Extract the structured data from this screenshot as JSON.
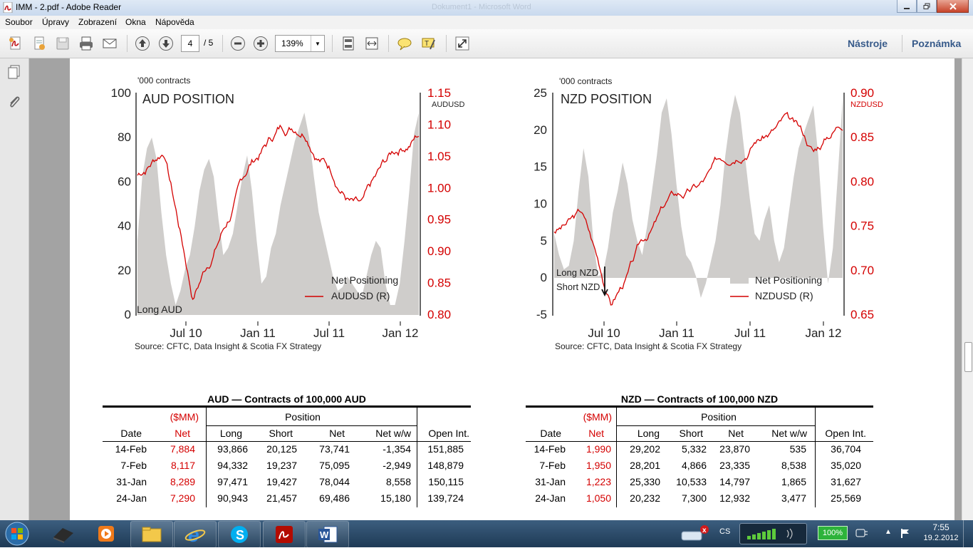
{
  "window": {
    "title": "IMM - 2.pdf - Adobe Reader",
    "background_title": "Dokument1 - Microsoft Word"
  },
  "menu": {
    "items": [
      "Soubor",
      "Úpravy",
      "Zobrazení",
      "Okna",
      "Nápověda"
    ]
  },
  "toolbar": {
    "page_current": "4",
    "page_total": "/ 5",
    "zoom": "139%",
    "tools_label": "Nástroje",
    "comment_label": "Poznámka"
  },
  "charts": {
    "aud": {
      "title": "AUD POSITION",
      "units": "'000 contracts",
      "right_label": "AUDUSD",
      "y_left_ticks": [
        "100",
        "80",
        "60",
        "40",
        "20",
        "0"
      ],
      "y_right_ticks": [
        "1.15",
        "1.10",
        "1.05",
        "1.00",
        "0.95",
        "0.90",
        "0.85",
        "0.80"
      ],
      "x_ticks": [
        "Jul 10",
        "Jan 11",
        "Jul 11",
        "Jan 12"
      ],
      "legend": [
        "Net Positioning",
        "AUDUSD (R)"
      ],
      "annotation": "Long AUD",
      "source": "Source: CFTC, Data Insight & Scotia FX Strategy"
    },
    "nzd": {
      "title": "NZD POSITION",
      "units": "'000 contracts",
      "right_label": "NZDUSD",
      "y_left_ticks": [
        "25",
        "20",
        "15",
        "10",
        "5",
        "0",
        "-5"
      ],
      "y_right_ticks": [
        "0.90",
        "0.85",
        "0.80",
        "0.75",
        "0.70",
        "0.65"
      ],
      "x_ticks": [
        "Jul 10",
        "Jan 11",
        "Jul 11",
        "Jan 12"
      ],
      "legend": [
        "Net Positioning",
        "NZDUSD (R)"
      ],
      "annotation_long": "Long NZD",
      "annotation_short": "Short NZD",
      "source": "Source: CFTC, Data Insight & Scotia FX Strategy"
    }
  },
  "colors": {
    "accent_red": "#d40000",
    "area_gray": "#cfcdcb",
    "toolbar_blue": "#375a8a"
  },
  "aud_table": {
    "title": "AUD — Contracts of 100,000 AUD",
    "mm_label": "($MM)",
    "position_label": "Position",
    "headers": [
      "Date",
      "Net",
      "Long",
      "Short",
      "Net",
      "Net w/w",
      "Open Int."
    ],
    "rows": [
      [
        "14-Feb",
        "7,884",
        "93,866",
        "20,125",
        "73,741",
        "-1,354",
        "151,885"
      ],
      [
        "7-Feb",
        "8,117",
        "94,332",
        "19,237",
        "75,095",
        "-2,949",
        "148,879"
      ],
      [
        "31-Jan",
        "8,289",
        "97,471",
        "19,427",
        "78,044",
        "8,558",
        "150,115"
      ],
      [
        "24-Jan",
        "7,290",
        "90,943",
        "21,457",
        "69,486",
        "15,180",
        "139,724"
      ]
    ]
  },
  "nzd_table": {
    "title": "NZD — Contracts of 100,000 NZD",
    "mm_label": "($MM)",
    "position_label": "Position",
    "headers": [
      "Date",
      "Net",
      "Long",
      "Short",
      "Net",
      "Net w/w",
      "Open Int."
    ],
    "rows": [
      [
        "14-Feb",
        "1,990",
        "29,202",
        "5,332",
        "23,870",
        "535",
        "36,704"
      ],
      [
        "7-Feb",
        "1,950",
        "28,201",
        "4,866",
        "23,335",
        "8,538",
        "35,020"
      ],
      [
        "31-Jan",
        "1,223",
        "25,330",
        "10,533",
        "14,797",
        "1,865",
        "31,627"
      ],
      [
        "24-Jan",
        "1,050",
        "20,232",
        "7,300",
        "12,932",
        "3,477",
        "25,569"
      ]
    ]
  },
  "taskbar": {
    "language": "CS",
    "battery": "100%",
    "time": "7:55",
    "date": "19.2.2012"
  }
}
